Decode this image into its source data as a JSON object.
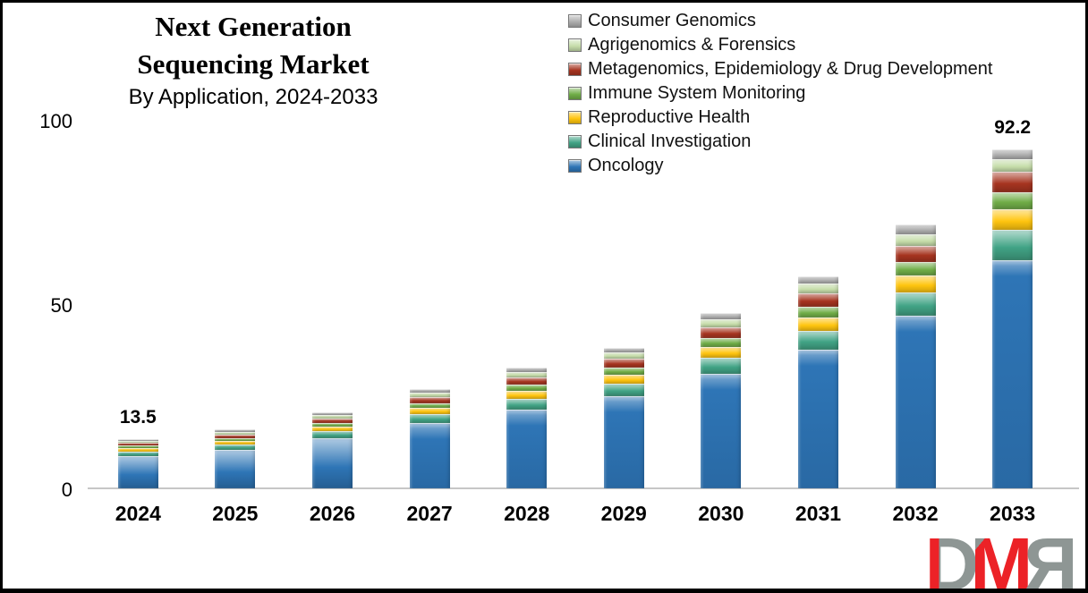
{
  "title": {
    "line1": "Next Generation",
    "line2": "Sequencing  Market",
    "subtitle": "By Application, 2024-2033"
  },
  "legend": {
    "items": [
      {
        "label": "Consumer Genomics",
        "color": "#acacac"
      },
      {
        "label": "Agrigenomics & Forensics",
        "color": "#c6ddaa"
      },
      {
        "label": "Metagenomics, Epidemiology & Drug Development",
        "color": "#a63420"
      },
      {
        "label": "Immune System Monitoring",
        "color": "#70ad47"
      },
      {
        "label": "Reproductive Health",
        "color": "#ffc50f"
      },
      {
        "label": "Clinical Investigation",
        "color": "#41a385"
      },
      {
        "label": "Oncology",
        "color": "#2e75b6"
      }
    ]
  },
  "chart_data": {
    "type": "bar",
    "stacked": true,
    "title": "Next Generation Sequencing Market",
    "subtitle": "By Application, 2024-2033",
    "categories": [
      "2024",
      "2025",
      "2026",
      "2027",
      "2028",
      "2029",
      "2030",
      "2031",
      "2032",
      "2033"
    ],
    "series": [
      {
        "name": "Oncology",
        "color": "#2e75b6",
        "values": [
          8.8,
          10.5,
          13.7,
          17.6,
          21.4,
          25.0,
          31.0,
          37.5,
          46.8,
          62.0
        ]
      },
      {
        "name": "Clinical Investigation",
        "color": "#41a385",
        "values": [
          1.2,
          1.4,
          1.9,
          2.4,
          2.9,
          3.4,
          4.3,
          5.2,
          6.4,
          8.2
        ]
      },
      {
        "name": "Reproductive Health",
        "color": "#ffc50f",
        "values": [
          0.9,
          1.0,
          1.3,
          1.7,
          2.1,
          2.4,
          3.0,
          3.6,
          4.5,
          5.7
        ]
      },
      {
        "name": "Immune System Monitoring",
        "color": "#70ad47",
        "values": [
          0.7,
          0.8,
          1.0,
          1.3,
          1.6,
          1.9,
          2.4,
          2.9,
          3.6,
          4.5
        ]
      },
      {
        "name": "Metagenomics, Epidemiology & Drug Development",
        "color": "#a63420",
        "values": [
          0.8,
          1.0,
          1.3,
          1.7,
          2.0,
          2.4,
          2.9,
          3.6,
          4.4,
          5.7
        ]
      },
      {
        "name": "Agrigenomics & Forensics",
        "color": "#c6ddaa",
        "values": [
          0.6,
          0.7,
          0.9,
          1.2,
          1.5,
          1.7,
          2.1,
          2.6,
          3.2,
          3.5
        ]
      },
      {
        "name": "Consumer Genomics",
        "color": "#acacac",
        "values": [
          0.5,
          0.7,
          0.8,
          0.9,
          1.1,
          1.3,
          1.7,
          1.9,
          2.6,
          2.6
        ]
      }
    ],
    "totals": [
      13.5,
      16.1,
      20.9,
      26.8,
      32.6,
      38.1,
      47.4,
      57.3,
      71.5,
      92.2
    ],
    "bar_labels": [
      "13.5",
      "",
      "",
      "",
      "",
      "",
      "",
      "",
      "",
      "92.2"
    ],
    "ylim": [
      0,
      100
    ],
    "yticks": [
      "100",
      "50",
      "0"
    ],
    "grid": false,
    "legend_position": "top-right"
  },
  "logo": {
    "d": "D",
    "m": "M",
    "r": "R"
  }
}
